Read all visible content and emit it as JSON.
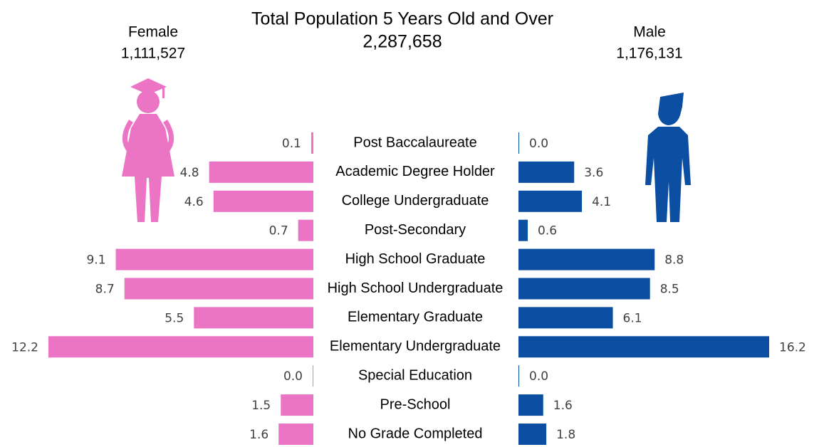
{
  "chart_data": {
    "type": "butterfly",
    "title": "Total Population 5 Years Old and Over",
    "subtitle": "2,287,658",
    "categories": [
      "Post Baccalaureate",
      "Academic Degree Holder",
      "College Undergraduate",
      "Post-Secondary",
      "High School Graduate",
      "High School Undergraduate",
      "Elementary Graduate",
      "Elementary Undergraduate",
      "Special Education",
      "Pre-School",
      "No Grade Completed"
    ],
    "series": [
      {
        "name": "Female",
        "total": "1,111,527",
        "color": "#ec74c4",
        "values": [
          0.1,
          4.8,
          4.6,
          0.7,
          9.1,
          8.7,
          5.5,
          12.2,
          0.0,
          1.5,
          1.6
        ],
        "value_labels": [
          "0.1",
          "4.8",
          "4.6",
          "0.7",
          "9.1",
          "8.7",
          "5.5",
          "12.2",
          "0.0",
          "1.5",
          "1.6"
        ]
      },
      {
        "name": "Male",
        "total": "1,176,131",
        "color": "#0b4ea2",
        "values": [
          0.0,
          3.6,
          4.1,
          0.6,
          8.8,
          8.5,
          6.1,
          16.2,
          0.0,
          1.6,
          1.8
        ],
        "value_labels": [
          "0.0",
          "3.6",
          "4.1",
          "0.6",
          "8.8",
          "8.5",
          "6.1",
          "16.2",
          "0.0",
          "1.6",
          "1.8"
        ]
      }
    ]
  }
}
